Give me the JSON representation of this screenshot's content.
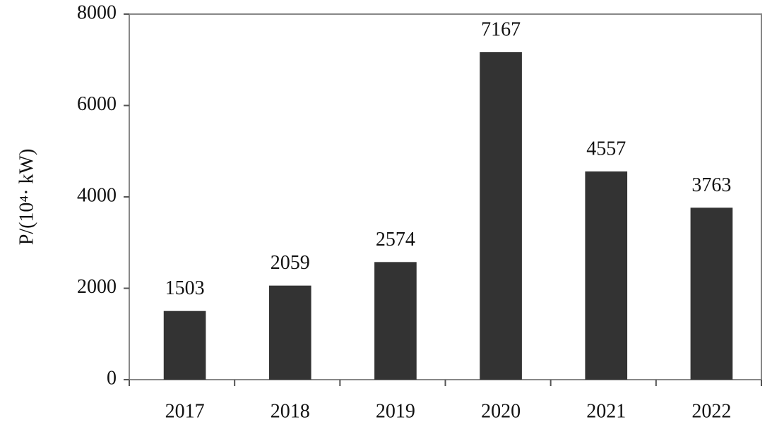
{
  "chart_data": {
    "type": "bar",
    "y_label": "P/(10⁴· kW)",
    "categories": [
      "2017",
      "2018",
      "2019",
      "2020",
      "2021",
      "2022"
    ],
    "values": [
      1503,
      2059,
      2574,
      7167,
      4557,
      3763
    ],
    "color": "#333333",
    "ylim": [
      0,
      8000
    ],
    "yticks": [
      0,
      2000,
      4000,
      6000,
      8000
    ],
    "grid": false
  }
}
